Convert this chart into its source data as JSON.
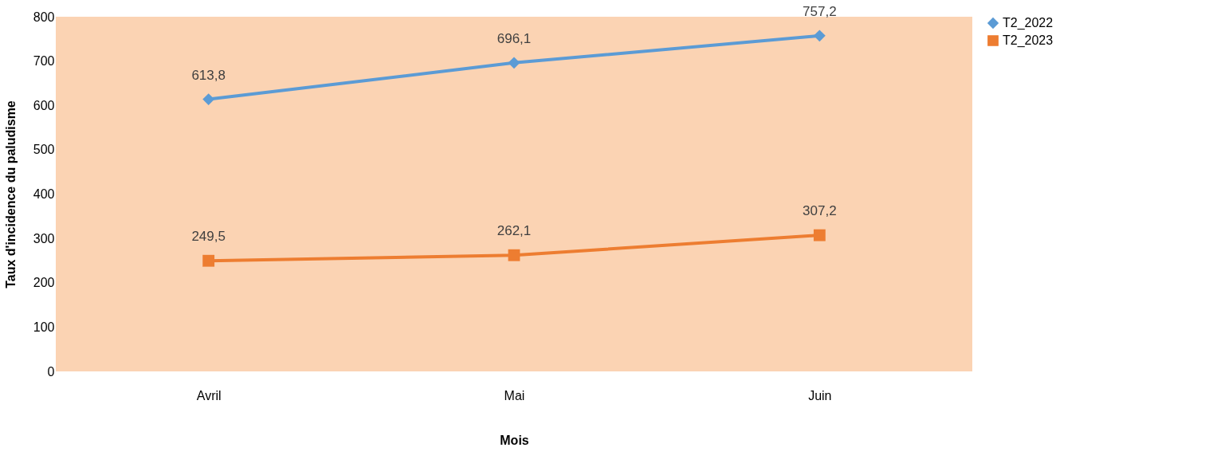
{
  "chart_data": {
    "type": "line",
    "xlabel": "Mois",
    "ylabel": "Taux d'incidence du paludisme",
    "categories": [
      "Avril",
      "Mai",
      "Juin"
    ],
    "series": [
      {
        "name": "T2_2022",
        "color": "#5b9bd5",
        "marker": "diamond",
        "values": [
          613.8,
          696.1,
          757.2
        ],
        "value_labels": [
          "613,8",
          "696,1",
          "757,2"
        ]
      },
      {
        "name": "T2_2023",
        "color": "#ed7d31",
        "marker": "square",
        "values": [
          249.5,
          262.1,
          307.2
        ],
        "value_labels": [
          "249,5",
          "262,1",
          "307,2"
        ]
      }
    ],
    "ylim": [
      0,
      800
    ],
    "yticks": [
      0,
      100,
      200,
      300,
      400,
      500,
      600,
      700,
      800
    ],
    "grid": false,
    "legend": "right",
    "line_style": "solid"
  }
}
